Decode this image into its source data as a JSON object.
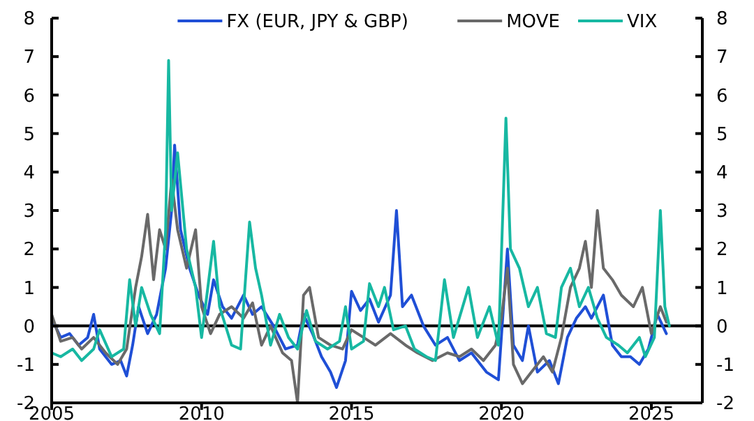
{
  "chart_data": {
    "type": "line",
    "xlim": [
      2005,
      2026.7
    ],
    "xticks": [
      2005,
      2010,
      2015,
      2020,
      2025
    ],
    "ylim": [
      -2,
      8
    ],
    "yticks": [
      -2,
      -1,
      0,
      1,
      2,
      3,
      4,
      5,
      6,
      7,
      8
    ],
    "y2lim": [
      -2,
      8
    ],
    "y2ticks": [
      -2,
      -1,
      0,
      1,
      2,
      3,
      4,
      5,
      6,
      7,
      8
    ],
    "legend": "top",
    "grid": false,
    "ref_lines": [
      {
        "axis": "y",
        "value": 0,
        "color": "#000000"
      }
    ],
    "series": [
      {
        "name": "FX (EUR, JPY & GBP)",
        "color": "#1f4fd6",
        "x": [
          2005.0,
          2005.3,
          2005.6,
          2005.9,
          2006.2,
          2006.4,
          2006.6,
          2007.0,
          2007.3,
          2007.5,
          2007.7,
          2007.9,
          2008.2,
          2008.5,
          2008.8,
          2009.0,
          2009.1,
          2009.3,
          2009.6,
          2009.9,
          2010.2,
          2010.4,
          2010.7,
          2011.0,
          2011.4,
          2011.7,
          2012.0,
          2012.4,
          2012.8,
          2013.2,
          2013.4,
          2013.7,
          2014.0,
          2014.3,
          2014.5,
          2014.8,
          2015.0,
          2015.3,
          2015.6,
          2015.9,
          2016.3,
          2016.5,
          2016.7,
          2017.0,
          2017.4,
          2017.8,
          2018.2,
          2018.6,
          2019.0,
          2019.5,
          2019.9,
          2020.2,
          2020.4,
          2020.7,
          2020.9,
          2021.2,
          2021.6,
          2021.9,
          2022.2,
          2022.5,
          2022.8,
          2023.0,
          2023.4,
          2023.7,
          2024.0,
          2024.3,
          2024.6,
          2024.9,
          2025.2,
          2025.5
        ],
        "values": [
          0.2,
          -0.3,
          -0.2,
          -0.5,
          -0.3,
          0.3,
          -0.6,
          -1.0,
          -0.9,
          -1.3,
          -0.5,
          0.5,
          -0.2,
          0.3,
          1.5,
          3.0,
          4.7,
          2.5,
          1.5,
          0.8,
          0.3,
          1.2,
          0.5,
          0.2,
          0.8,
          0.3,
          0.5,
          0.0,
          -0.6,
          -0.5,
          0.3,
          -0.2,
          -0.8,
          -1.2,
          -1.6,
          -0.9,
          0.9,
          0.4,
          0.7,
          0.1,
          0.8,
          3.0,
          0.5,
          0.8,
          0.0,
          -0.5,
          -0.3,
          -0.9,
          -0.7,
          -1.2,
          -1.4,
          2.0,
          -0.5,
          -0.9,
          0.0,
          -1.2,
          -0.9,
          -1.5,
          -0.3,
          0.2,
          0.5,
          0.2,
          0.8,
          -0.5,
          -0.8,
          -0.8,
          -1.0,
          -0.6,
          0.3,
          -0.2
        ]
      },
      {
        "name": "MOVE",
        "color": "#696969",
        "x": [
          2005.0,
          2005.3,
          2005.7,
          2006.0,
          2006.4,
          2006.8,
          2007.2,
          2007.5,
          2007.8,
          2008.0,
          2008.2,
          2008.4,
          2008.6,
          2008.8,
          2009.0,
          2009.2,
          2009.5,
          2009.8,
          2010.0,
          2010.3,
          2010.6,
          2011.0,
          2011.4,
          2011.7,
          2012.0,
          2012.3,
          2012.7,
          2013.0,
          2013.2,
          2013.4,
          2013.6,
          2013.9,
          2014.3,
          2014.7,
          2015.0,
          2015.4,
          2015.8,
          2016.3,
          2016.8,
          2017.2,
          2017.7,
          2018.2,
          2018.6,
          2019.0,
          2019.4,
          2019.8,
          2020.0,
          2020.2,
          2020.4,
          2020.7,
          2021.0,
          2021.4,
          2021.7,
          2022.0,
          2022.3,
          2022.6,
          2022.8,
          2023.0,
          2023.2,
          2023.4,
          2023.7,
          2024.0,
          2024.4,
          2024.7,
          2025.0,
          2025.3,
          2025.5
        ],
        "values": [
          0.3,
          -0.4,
          -0.3,
          -0.6,
          -0.3,
          -0.7,
          -1.0,
          -0.6,
          1.0,
          1.8,
          2.9,
          1.2,
          2.5,
          2.0,
          3.8,
          2.5,
          1.5,
          2.5,
          0.5,
          -0.2,
          0.3,
          0.5,
          0.2,
          0.6,
          -0.5,
          0.0,
          -0.7,
          -0.9,
          -2.0,
          0.8,
          1.0,
          -0.3,
          -0.5,
          -0.6,
          -0.1,
          -0.3,
          -0.5,
          -0.2,
          -0.5,
          -0.7,
          -0.9,
          -0.7,
          -0.8,
          -0.6,
          -0.9,
          -0.5,
          0.2,
          1.5,
          -1.0,
          -1.5,
          -1.2,
          -0.8,
          -1.2,
          -0.3,
          1.0,
          1.5,
          2.2,
          1.0,
          3.0,
          1.5,
          1.2,
          0.8,
          0.5,
          1.0,
          -0.2,
          0.5,
          0.1
        ]
      },
      {
        "name": "VIX",
        "color": "#17b8a2",
        "x": [
          2005.0,
          2005.3,
          2005.7,
          2006.0,
          2006.4,
          2006.6,
          2007.0,
          2007.4,
          2007.6,
          2007.8,
          2008.0,
          2008.3,
          2008.6,
          2008.8,
          2008.9,
          2009.0,
          2009.2,
          2009.5,
          2009.8,
          2010.0,
          2010.4,
          2010.6,
          2011.0,
          2011.3,
          2011.6,
          2011.8,
          2012.0,
          2012.3,
          2012.6,
          2012.9,
          2013.2,
          2013.5,
          2013.8,
          2014.2,
          2014.6,
          2014.8,
          2015.0,
          2015.4,
          2015.6,
          2015.9,
          2016.1,
          2016.4,
          2016.8,
          2017.1,
          2017.5,
          2017.8,
          2018.1,
          2018.4,
          2018.9,
          2019.2,
          2019.6,
          2019.9,
          2020.15,
          2020.3,
          2020.6,
          2020.9,
          2021.2,
          2021.5,
          2021.8,
          2022.0,
          2022.3,
          2022.6,
          2022.9,
          2023.2,
          2023.5,
          2023.9,
          2024.2,
          2024.6,
          2024.8,
          2025.1,
          2025.3,
          2025.45,
          2025.6
        ],
        "values": [
          -0.7,
          -0.8,
          -0.6,
          -0.9,
          -0.6,
          -0.1,
          -0.8,
          -0.6,
          1.2,
          0.0,
          1.0,
          0.3,
          -0.2,
          2.5,
          6.9,
          3.0,
          4.5,
          2.0,
          1.0,
          -0.3,
          2.2,
          0.5,
          -0.5,
          -0.6,
          2.7,
          1.5,
          0.8,
          -0.5,
          0.3,
          -0.3,
          -0.6,
          0.4,
          -0.4,
          -0.6,
          -0.4,
          0.5,
          -0.6,
          -0.4,
          1.1,
          0.5,
          1.0,
          -0.1,
          0.0,
          -0.6,
          -0.8,
          -0.9,
          1.2,
          -0.3,
          1.0,
          -0.3,
          0.5,
          -0.5,
          5.4,
          2.0,
          1.5,
          0.5,
          1.0,
          -0.2,
          -0.3,
          1.0,
          1.5,
          0.5,
          1.0,
          0.2,
          -0.3,
          -0.5,
          -0.7,
          -0.3,
          -0.8,
          -0.3,
          3.0,
          0.5,
          0.0
        ]
      }
    ]
  }
}
